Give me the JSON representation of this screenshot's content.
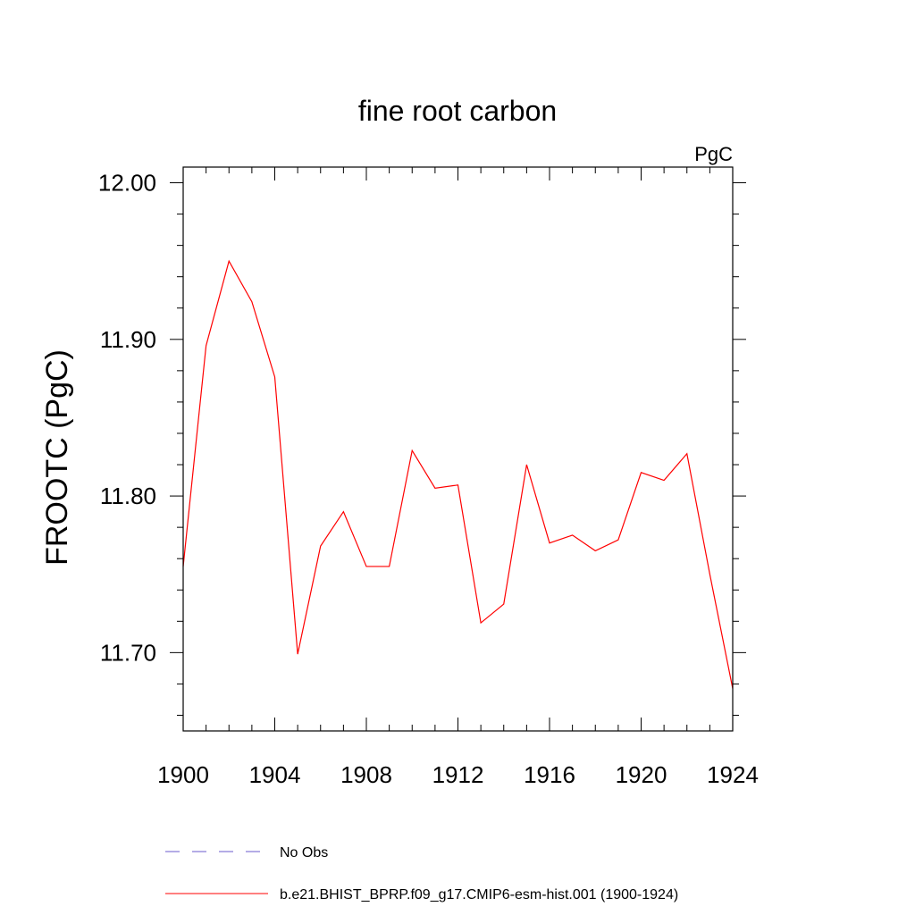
{
  "chart_data": {
    "type": "line",
    "title": "fine root carbon",
    "units_label": "PgC",
    "ylabel": "FROOTC  (PgC)",
    "xlabel": "",
    "xlim": [
      1900,
      1924
    ],
    "ylim": [
      11.65,
      12.01
    ],
    "x_ticks": [
      1900,
      1904,
      1908,
      1912,
      1916,
      1920,
      1924
    ],
    "x_tick_labels": [
      "1900",
      "1904",
      "1908",
      "1912",
      "1916",
      "1920",
      "1924"
    ],
    "y_ticks": [
      11.7,
      11.8,
      11.9,
      12.0
    ],
    "y_tick_labels": [
      "11.70",
      "11.80",
      "11.90",
      "12.00"
    ],
    "grid": false,
    "legend_position": "bottom",
    "series": [
      {
        "name": "No Obs",
        "color": "#6a5acd",
        "dash": "dashed",
        "x": [],
        "values": []
      },
      {
        "name": "b.e21.BHIST_BPRP.f09_g17.CMIP6-esm-hist.001 (1900-1924)",
        "color": "#ff0000",
        "dash": "solid",
        "x": [
          1900,
          1901,
          1902,
          1903,
          1904,
          1905,
          1906,
          1907,
          1908,
          1909,
          1910,
          1911,
          1912,
          1913,
          1914,
          1915,
          1916,
          1917,
          1918,
          1919,
          1920,
          1921,
          1922,
          1923,
          1924
        ],
        "values": [
          11.755,
          11.896,
          11.95,
          11.924,
          11.876,
          11.699,
          11.768,
          11.79,
          11.755,
          11.755,
          11.829,
          11.805,
          11.807,
          11.719,
          11.731,
          11.82,
          11.77,
          11.775,
          11.765,
          11.772,
          11.815,
          11.81,
          11.827,
          11.75,
          11.677
        ]
      }
    ]
  }
}
